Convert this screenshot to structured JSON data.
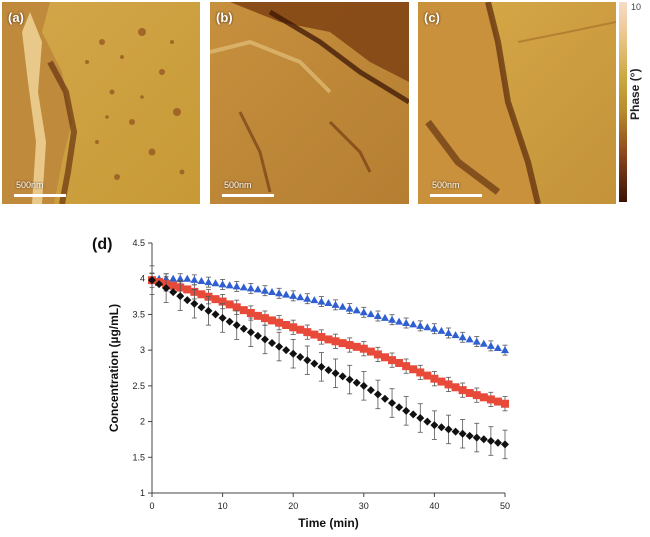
{
  "panels": [
    {
      "label": "(a)",
      "scale_text": "500nm"
    },
    {
      "label": "(b)",
      "scale_text": "500nm"
    },
    {
      "label": "(c)",
      "scale_text": "500nm"
    }
  ],
  "colorbar": {
    "max_label": "10",
    "title": "Phase (°)"
  },
  "colors": {
    "bright": "#d9b24a",
    "mid": "#b98a3a",
    "dark": "#5a2a0a"
  },
  "chart_data": {
    "type": "scatter",
    "panel_label": "(d)",
    "xlabel": "Time (min)",
    "ylabel": "Concentration (µg/mL)",
    "xlim": [
      0,
      50
    ],
    "ylim": [
      1,
      4.5
    ],
    "xticks": [
      0,
      10,
      20,
      30,
      40,
      50
    ],
    "yticks": [
      1,
      1.5,
      2,
      2.5,
      3,
      3.5,
      4,
      4.5
    ],
    "series": [
      {
        "color": "#2f5fd0",
        "marker": "triangle",
        "error": 0.07,
        "points": [
          [
            0,
            4.0
          ],
          [
            5,
            4.0
          ],
          [
            10,
            3.92
          ],
          [
            15,
            3.85
          ],
          [
            20,
            3.76
          ],
          [
            25,
            3.66
          ],
          [
            30,
            3.53
          ],
          [
            35,
            3.4
          ],
          [
            40,
            3.3
          ],
          [
            45,
            3.15
          ],
          [
            50,
            3.0
          ]
        ]
      },
      {
        "color": "#e84a3a",
        "marker": "square",
        "error": 0.1,
        "points": [
          [
            0,
            3.98
          ],
          [
            5,
            3.85
          ],
          [
            10,
            3.68
          ],
          [
            15,
            3.48
          ],
          [
            20,
            3.32
          ],
          [
            25,
            3.15
          ],
          [
            30,
            3.02
          ],
          [
            35,
            2.82
          ],
          [
            40,
            2.6
          ],
          [
            45,
            2.4
          ],
          [
            50,
            2.25
          ]
        ]
      },
      {
        "color": "#111111",
        "marker": "diamond",
        "error": 0.2,
        "points": [
          [
            0,
            3.98
          ],
          [
            5,
            3.7
          ],
          [
            10,
            3.45
          ],
          [
            15,
            3.2
          ],
          [
            20,
            2.95
          ],
          [
            25,
            2.72
          ],
          [
            30,
            2.5
          ],
          [
            35,
            2.2
          ],
          [
            40,
            1.95
          ],
          [
            45,
            1.8
          ],
          [
            50,
            1.68
          ]
        ]
      }
    ]
  }
}
